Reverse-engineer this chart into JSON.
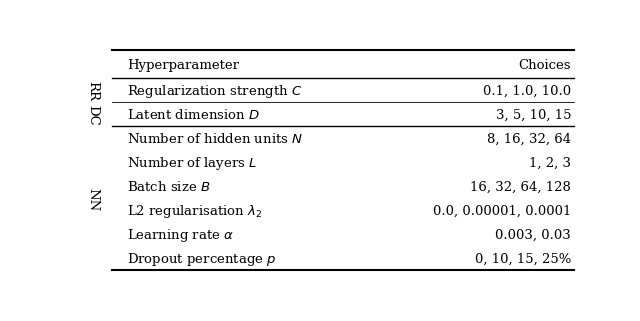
{
  "col_headers": [
    "Hyperparameter",
    "Choices"
  ],
  "rows": [
    {
      "label": "Regularization strength $C$",
      "choices": "0.1, 1.0, 10.0",
      "side_label": "RR"
    },
    {
      "label": "Latent dimension $D$",
      "choices": "3, 5, 10, 15",
      "side_label": "DC"
    },
    {
      "label": "Number of hidden units $N$",
      "choices": "8, 16, 32, 64",
      "side_label": ""
    },
    {
      "label": "Number of layers $L$",
      "choices": "1, 2, 3",
      "side_label": ""
    },
    {
      "label": "Batch size $B$",
      "choices": "16, 32, 64, 128",
      "side_label": ""
    },
    {
      "label": "L2 regularisation $\\lambda_2$",
      "choices": "0.0, 0.00001, 0.0001",
      "side_label": "NN"
    },
    {
      "label": "Learning rate $\\alpha$",
      "choices": "0.003, 0.03",
      "side_label": ""
    },
    {
      "label": "Dropout percentage $p$",
      "choices": "0, 10, 15, 25%",
      "side_label": ""
    }
  ],
  "bg_color": "#ffffff",
  "text_color": "#000000",
  "line_color": "#000000",
  "font_size": 9.5
}
